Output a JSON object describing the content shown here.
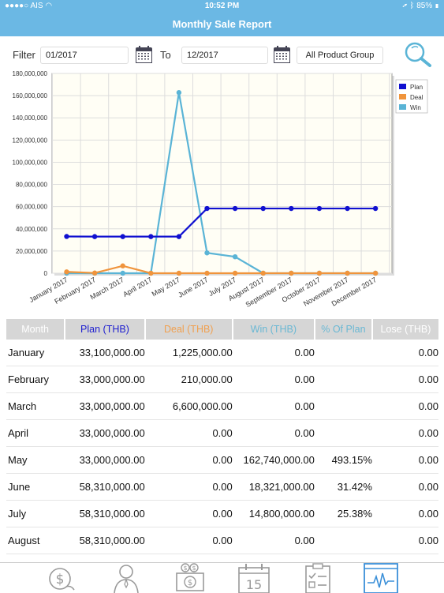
{
  "status_bar": {
    "carrier": "AIS",
    "time": "10:52 PM",
    "battery": "85%"
  },
  "header": {
    "title": "Monthly Sale Report"
  },
  "filter": {
    "label": "Filter",
    "from_value": "01/2017",
    "to_label": "To",
    "to_value": "12/2017",
    "group_value": "All Product Group",
    "icons": {
      "calendar": "calendar-icon",
      "search": "magnifier-icon"
    }
  },
  "chart_data": {
    "type": "line",
    "categories": [
      "January 2017",
      "February 2017",
      "March 2017",
      "April 2017",
      "May 2017",
      "June 2017",
      "July 2017",
      "August 2017",
      "September 2017",
      "October 2017",
      "November 2017",
      "December 2017"
    ],
    "y_tick_labels": [
      "0",
      "20,000,000",
      "40,000,000",
      "60,000,000",
      "80,000,000",
      "100,000,000",
      "120,000,000",
      "140,000,000",
      "160,000,000",
      "180,000,000"
    ],
    "ylim": [
      0,
      180000000
    ],
    "grid": true,
    "legend_position": "top-right",
    "series": [
      {
        "name": "Plan",
        "color": "#1010d0",
        "values": [
          33100000,
          33000000,
          33000000,
          33000000,
          33000000,
          58310000,
          58310000,
          58310000,
          58310000,
          58310000,
          58310000,
          58310000
        ]
      },
      {
        "name": "Deal",
        "color": "#f0943c",
        "values": [
          1225000,
          210000,
          6600000,
          0,
          0,
          0,
          0,
          0,
          0,
          0,
          0,
          0
        ]
      },
      {
        "name": "Win",
        "color": "#5ab4d6",
        "values": [
          0,
          0,
          0,
          0,
          162740000,
          18321000,
          14800000,
          0,
          0,
          0,
          0,
          0
        ]
      }
    ]
  },
  "table": {
    "headers": {
      "month": "Month",
      "plan": "Plan (THB)",
      "deal": "Deal (THB)",
      "win": "Win (THB)",
      "pct": "% Of Plan",
      "lose": "Lose (THB)"
    },
    "rows": [
      {
        "month": "January",
        "plan": "33,100,000.00",
        "deal": "1,225,000.00",
        "win": "0.00",
        "pct": "",
        "lose": "0.00"
      },
      {
        "month": "February",
        "plan": "33,000,000.00",
        "deal": "210,000.00",
        "win": "0.00",
        "pct": "",
        "lose": "0.00"
      },
      {
        "month": "March",
        "plan": "33,000,000.00",
        "deal": "6,600,000.00",
        "win": "0.00",
        "pct": "",
        "lose": "0.00"
      },
      {
        "month": "April",
        "plan": "33,000,000.00",
        "deal": "0.00",
        "win": "0.00",
        "pct": "",
        "lose": "0.00"
      },
      {
        "month": "May",
        "plan": "33,000,000.00",
        "deal": "0.00",
        "win": "162,740,000.00",
        "pct": "493.15%",
        "lose": "0.00"
      },
      {
        "month": "June",
        "plan": "58,310,000.00",
        "deal": "0.00",
        "win": "18,321,000.00",
        "pct": "31.42%",
        "lose": "0.00"
      },
      {
        "month": "July",
        "plan": "58,310,000.00",
        "deal": "0.00",
        "win": "14,800,000.00",
        "pct": "25.38%",
        "lose": "0.00"
      },
      {
        "month": "August",
        "plan": "58,310,000.00",
        "deal": "0.00",
        "win": "0.00",
        "pct": "",
        "lose": "0.00"
      }
    ]
  },
  "tabbar": {
    "calendar_day": "15",
    "items": [
      "sales-money-icon",
      "customer-icon",
      "presentation-money-icon",
      "calendar-icon",
      "checklist-icon",
      "monitor-chart-icon"
    ]
  }
}
